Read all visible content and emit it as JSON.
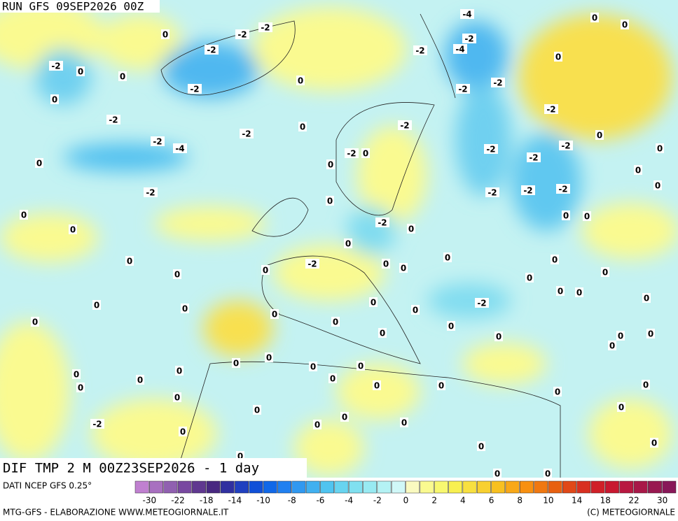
{
  "header": {
    "run": "RUN GFS 09SEP2026 00Z"
  },
  "map": {
    "field_label": "DIF TMP 2 M 00Z23SEP2026 - 1 day",
    "labels": [
      -4,
      0,
      0,
      0,
      -2,
      -2,
      -2,
      -2,
      -4,
      -2,
      0,
      -2,
      0,
      0,
      0,
      -2,
      -2,
      -2,
      0,
      -2,
      -2,
      0,
      -2,
      -2,
      0,
      -2,
      -4,
      -2,
      0,
      -2,
      -2,
      0,
      0,
      0,
      -2,
      0,
      -2,
      -2,
      -2,
      -2,
      0,
      0,
      0,
      0,
      0,
      0,
      -2,
      0,
      0,
      0,
      0,
      0,
      0,
      -2,
      0,
      0,
      0,
      0,
      0,
      0,
      0,
      0,
      0,
      0,
      0,
      0,
      -2,
      0,
      0,
      0,
      0,
      0,
      0,
      0,
      0,
      0,
      0,
      0,
      0,
      0,
      0,
      0,
      0,
      0,
      0,
      0,
      0,
      0,
      0,
      0,
      0,
      0,
      0,
      -2,
      0,
      0,
      0,
      0,
      0,
      0,
      0,
      0,
      0
    ]
  },
  "legend": {
    "source": "DATI NCEP GFS 0.25°",
    "colors": [
      "#c080d0",
      "#a870c0",
      "#9060b0",
      "#7848a0",
      "#603890",
      "#482880",
      "#3030a0",
      "#2040c0",
      "#1050d8",
      "#1068e8",
      "#2080f0",
      "#3098f0",
      "#40b0f0",
      "#50c4f0",
      "#68d4f0",
      "#80e0f0",
      "#98eaf2",
      "#b4f2f4",
      "#d0f8f8",
      "#fafac0",
      "#fafa90",
      "#f8f870",
      "#f8f050",
      "#f8e040",
      "#f8d030",
      "#f8c020",
      "#f8a818",
      "#f89010",
      "#f07810",
      "#e86010",
      "#e04818",
      "#d83020",
      "#d02028",
      "#c81830",
      "#b81840",
      "#a81848",
      "#981850",
      "#881858"
    ],
    "ticks": [
      -30,
      -22,
      -18,
      -14,
      -10,
      -8,
      -6,
      -4,
      -2,
      0,
      2,
      4,
      6,
      8,
      10,
      14,
      18,
      22,
      30
    ]
  },
  "footer": {
    "credit": "MTG-GFS - ELABORAZIONE WWW.METEOGIORNALE.IT",
    "copyright": "(C) METEOGIORNALE"
  }
}
